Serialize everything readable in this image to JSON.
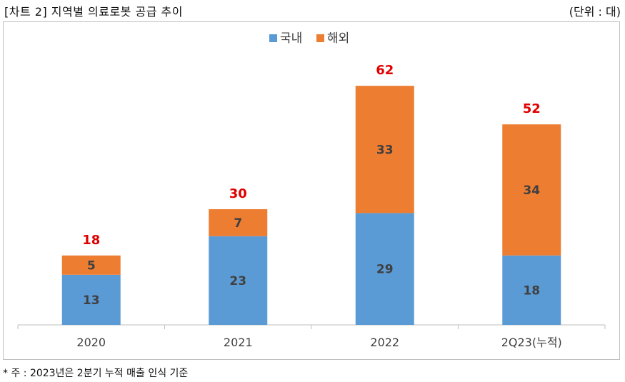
{
  "header": {
    "title": "[차트 2] 지역별 의료로봇 공급 추이",
    "unit": "(단위 : 대)"
  },
  "footnote": "* 주 : 2023년은 2분기 누적 매출 인식 기준",
  "chart_data": {
    "type": "bar",
    "stacked": true,
    "categories": [
      "2020",
      "2021",
      "2022",
      "2Q23(누적)"
    ],
    "series": [
      {
        "name": "국내",
        "values": [
          13,
          23,
          29,
          18
        ],
        "color": "#5b9bd5"
      },
      {
        "name": "해외",
        "values": [
          5,
          7,
          33,
          34
        ],
        "color": "#ed7d31"
      }
    ],
    "totals": [
      18,
      30,
      62,
      52
    ],
    "total_color": "#e00000",
    "ylim": [
      0,
      70
    ],
    "grid": false,
    "legend": "top-center",
    "xlabel": "",
    "ylabel": ""
  }
}
